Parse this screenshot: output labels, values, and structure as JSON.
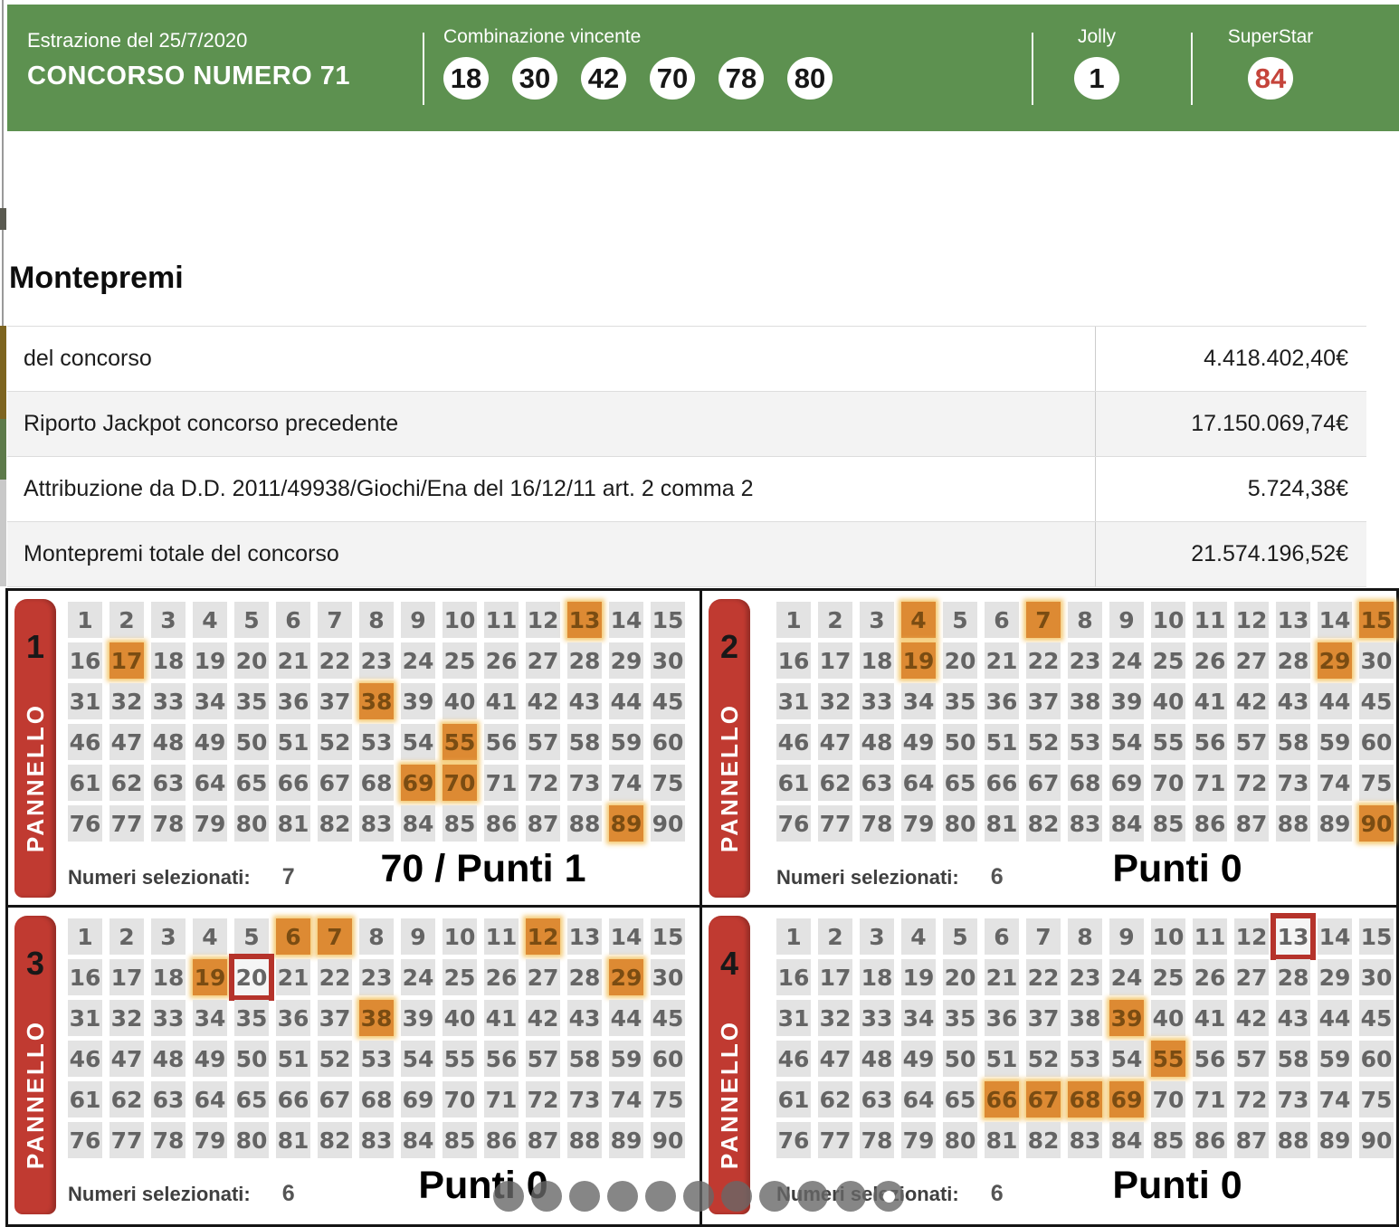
{
  "header": {
    "draw_date": "Estrazione del 25/7/2020",
    "contest_title": "CONCORSO NUMERO 71",
    "winning_label": "Combinazione vincente",
    "winning_numbers": [
      "18",
      "30",
      "42",
      "70",
      "78",
      "80"
    ],
    "jolly_label": "Jolly",
    "jolly_number": "1",
    "superstar_label": "SuperStar",
    "superstar_number": "84"
  },
  "montepremi": {
    "title": "Montepremi",
    "rows": [
      {
        "label": "del concorso",
        "value": "4.418.402,40€"
      },
      {
        "label": "Riporto Jackpot concorso precedente",
        "value": "17.150.069,74€"
      },
      {
        "label": "Attribuzione da D.D. 2011/49938/Giochi/Ena del 16/12/11 art. 2 comma 2",
        "value": "5.724,38€"
      },
      {
        "label": "Montepremi totale del concorso",
        "value": "21.574.196,52€"
      }
    ]
  },
  "panels_section": {
    "grid": {
      "first": 1,
      "last": 90,
      "columns": 15
    },
    "tab_label": "PANNELLO",
    "selected_label": "Numeri selezionati:",
    "panels": [
      {
        "number": "1",
        "selected": [
          13,
          17,
          38,
          55,
          69,
          70,
          89
        ],
        "outlined": [],
        "count": "7",
        "result": "70 / Punti 1"
      },
      {
        "number": "2",
        "selected": [
          4,
          7,
          15,
          19,
          29,
          90
        ],
        "outlined": [],
        "count": "6",
        "result": "Punti 0"
      },
      {
        "number": "3",
        "selected": [
          6,
          7,
          12,
          19,
          29,
          38
        ],
        "outlined": [
          20
        ],
        "count": "6",
        "result": "Punti 0"
      },
      {
        "number": "4",
        "selected": [
          39,
          55,
          66,
          67,
          68,
          69
        ],
        "outlined": [
          13
        ],
        "count": "6",
        "result": "Punti 0"
      }
    ]
  },
  "pagination": {
    "dot_count": 11,
    "ring_dot_index": 10
  },
  "colors": {
    "green": "#5d9150",
    "red": "#c03a31",
    "sel": "#dd8a33",
    "cellbg": "#e3e3e3",
    "outred": "#b5332b",
    "ssred": "#c5443b"
  }
}
